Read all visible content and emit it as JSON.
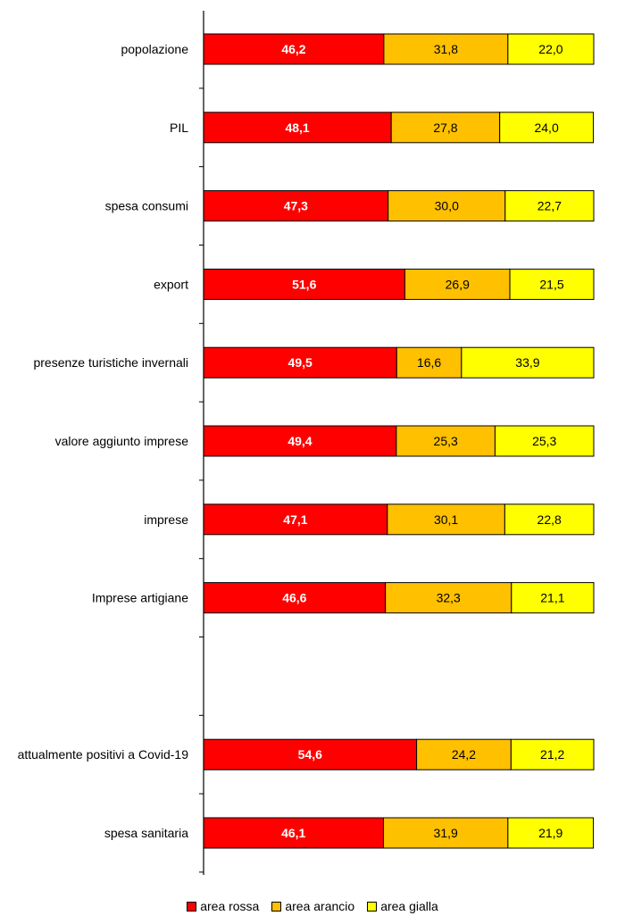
{
  "chart_data": {
    "type": "bar",
    "orientation": "horizontal",
    "stacked": true,
    "title": "",
    "xlabel": "",
    "ylabel": "",
    "xlim": [
      0,
      100
    ],
    "grid": false,
    "legend_position": "bottom",
    "categories": [
      "popolazione",
      "PIL",
      "spesa consumi",
      "export",
      "presenze turistiche invernali",
      "valore aggiunto imprese",
      "imprese",
      "Imprese artigiane",
      "",
      "attualmente positivi a Covid-19",
      "spesa sanitaria"
    ],
    "series": [
      {
        "name": "area rossa",
        "color": "#ff0000",
        "label_color": "#ffffff",
        "label_bold": true,
        "values": [
          46.2,
          48.1,
          47.3,
          51.6,
          49.5,
          49.4,
          47.1,
          46.6,
          null,
          54.6,
          46.1
        ],
        "labels": [
          "46,2",
          "48,1",
          "47,3",
          "51,6",
          "49,5",
          "49,4",
          "47,1",
          "46,6",
          "",
          "54,6",
          "46,1"
        ]
      },
      {
        "name": "area arancio",
        "color": "#ffc000",
        "label_color": "#000000",
        "label_bold": false,
        "values": [
          31.8,
          27.8,
          30.0,
          26.9,
          16.6,
          25.3,
          30.1,
          32.3,
          null,
          24.2,
          31.9
        ],
        "labels": [
          "31,8",
          "27,8",
          "30,0",
          "26,9",
          "16,6",
          "25,3",
          "30,1",
          "32,3",
          "",
          "24,2",
          "31,9"
        ]
      },
      {
        "name": "area gialla",
        "color": "#ffff00",
        "label_color": "#000000",
        "label_bold": false,
        "values": [
          22.0,
          24.0,
          22.7,
          21.5,
          33.9,
          25.3,
          22.8,
          21.1,
          null,
          21.2,
          21.9
        ],
        "labels": [
          "22,0",
          "24,0",
          "22,7",
          "21,5",
          "33,9",
          "25,3",
          "22,8",
          "21,1",
          "",
          "21,2",
          "21,9"
        ]
      }
    ]
  }
}
